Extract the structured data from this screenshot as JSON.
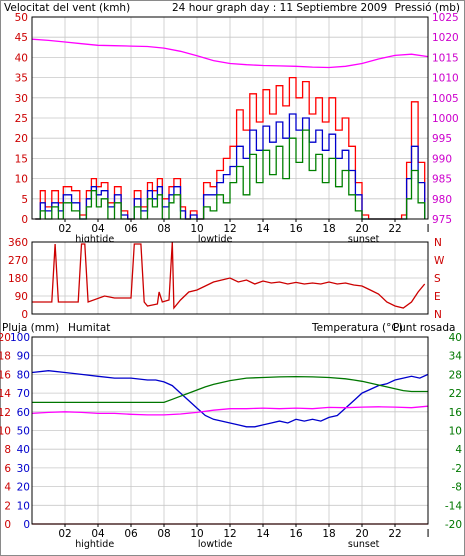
{
  "header": {
    "wind_title": "Velocitat del vent (kmh)",
    "day_title": "24 hour graph day : 11 Septiembre 2009",
    "pressure_title": "Pressió (mb)"
  },
  "colors": {
    "wind_gust": "#ff0000",
    "wind_avg": "#0000cc",
    "wind_min": "#008000",
    "pressure": "#ff00ff",
    "direction": "#cc0000",
    "rain": "#cc0000",
    "humidity": "#0000cc",
    "temperature": "#007700",
    "dewpoint": "#ff00ff",
    "grid": "#c8c8c8",
    "frame": "#000000"
  },
  "x_axis": {
    "range": [
      0,
      24
    ],
    "ticks": [
      2,
      4,
      6,
      8,
      10,
      12,
      14,
      16,
      18,
      20,
      22
    ],
    "tick_labels": [
      "02",
      "04",
      "06",
      "08",
      "10",
      "12",
      "14",
      "16",
      "18",
      "20",
      "22"
    ],
    "end_label": "I",
    "events": [
      {
        "label": "hightide",
        "x": 3.8
      },
      {
        "label": "lowtide",
        "x": 11.1
      },
      {
        "label": "sunset",
        "x": 20.1
      }
    ]
  },
  "chart_data": [
    {
      "type": "line",
      "name": "wind-pressure",
      "title": "24 hour graph day : 11 Septiembre 2009",
      "left_axis_label": "Velocitat del vent (kmh)",
      "right_axis_label": "Pressió (mb)",
      "left_ylim": [
        0,
        50
      ],
      "left_ticks": [
        0,
        5,
        10,
        15,
        20,
        25,
        30,
        35,
        40,
        45,
        50
      ],
      "right_ylim": [
        975,
        1025
      ],
      "right_ticks": [
        975,
        980,
        985,
        990,
        995,
        1000,
        1005,
        1010,
        1015,
        1020,
        1025
      ],
      "grid": true,
      "series": [
        {
          "name": "gust",
          "axis": "left",
          "x": [
            0.2,
            0.5,
            0.8,
            1.2,
            1.6,
            1.9,
            2.4,
            2.9,
            3.3,
            3.6,
            3.9,
            4.2,
            4.6,
            5.0,
            5.4,
            5.8,
            6.2,
            6.6,
            7.0,
            7.3,
            7.6,
            7.9,
            8.3,
            8.6,
            9.0,
            9.3,
            9.6,
            10.0,
            10.4,
            10.8,
            11.2,
            11.6,
            12.0,
            12.4,
            12.8,
            13.2,
            13.6,
            14.0,
            14.4,
            14.8,
            15.2,
            15.6,
            16.0,
            16.4,
            16.8,
            17.2,
            17.6,
            18.0,
            18.4,
            18.8,
            19.2,
            19.6,
            20.0,
            20.4,
            20.8,
            21.2,
            21.6,
            22.0,
            22.4,
            22.7,
            23.0,
            23.4,
            23.8
          ],
          "y": [
            0,
            7,
            3,
            7,
            4,
            8,
            7,
            1,
            7,
            10,
            8,
            9,
            4,
            8,
            2,
            0,
            7,
            3,
            9,
            7,
            10,
            5,
            8,
            10,
            3,
            0,
            2,
            0,
            9,
            8,
            12,
            15,
            18,
            27,
            22,
            31,
            24,
            32,
            26,
            33,
            28,
            35,
            30,
            34,
            26,
            30,
            24,
            30,
            22,
            25,
            18,
            9,
            1,
            0,
            0,
            0,
            0,
            0,
            1,
            14,
            29,
            14,
            0
          ]
        },
        {
          "name": "average",
          "axis": "left",
          "x": [
            0.2,
            0.5,
            0.8,
            1.2,
            1.6,
            1.9,
            2.4,
            2.9,
            3.3,
            3.6,
            3.9,
            4.2,
            4.6,
            5.0,
            5.4,
            5.8,
            6.2,
            6.6,
            7.0,
            7.3,
            7.6,
            7.9,
            8.3,
            8.6,
            9.0,
            9.3,
            9.6,
            10.0,
            10.4,
            10.8,
            11.2,
            11.6,
            12.0,
            12.4,
            12.8,
            13.2,
            13.6,
            14.0,
            14.4,
            14.8,
            15.2,
            15.6,
            16.0,
            16.4,
            16.8,
            17.2,
            17.6,
            18.0,
            18.4,
            18.8,
            19.2,
            19.6,
            20.0,
            20.4,
            20.8,
            21.2,
            21.6,
            22.0,
            22.4,
            22.7,
            23.0,
            23.4,
            23.8
          ],
          "y": [
            0,
            4,
            2,
            4,
            2,
            6,
            4,
            0,
            5,
            8,
            6,
            7,
            3,
            6,
            1,
            0,
            5,
            2,
            7,
            5,
            8,
            3,
            6,
            8,
            2,
            0,
            1,
            0,
            6,
            6,
            9,
            11,
            13,
            18,
            15,
            22,
            17,
            23,
            19,
            24,
            20,
            26,
            22,
            25,
            19,
            22,
            17,
            21,
            15,
            17,
            12,
            6,
            0,
            0,
            0,
            0,
            0,
            0,
            0,
            10,
            18,
            9,
            0
          ]
        },
        {
          "name": "minimum",
          "axis": "left",
          "x": [
            0.2,
            0.5,
            0.8,
            1.2,
            1.6,
            1.9,
            2.4,
            2.9,
            3.3,
            3.6,
            3.9,
            4.2,
            4.6,
            5.0,
            5.4,
            5.8,
            6.2,
            6.6,
            7.0,
            7.3,
            7.6,
            7.9,
            8.3,
            8.6,
            9.0,
            9.3,
            9.6,
            10.0,
            10.4,
            10.8,
            11.2,
            11.6,
            12.0,
            12.4,
            12.8,
            13.2,
            13.6,
            14.0,
            14.4,
            14.8,
            15.2,
            15.6,
            16.0,
            16.4,
            16.8,
            17.2,
            17.6,
            18.0,
            18.4,
            18.8,
            19.2,
            19.6,
            20.0,
            20.4,
            20.8,
            21.2,
            21.6,
            22.0,
            22.4,
            22.7,
            23.0,
            23.4,
            23.8
          ],
          "y": [
            0,
            2,
            0,
            3,
            0,
            4,
            2,
            0,
            3,
            7,
            3,
            5,
            0,
            4,
            0,
            0,
            3,
            0,
            5,
            3,
            6,
            0,
            4,
            6,
            0,
            0,
            0,
            0,
            3,
            2,
            6,
            4,
            9,
            13,
            6,
            16,
            9,
            17,
            11,
            18,
            10,
            20,
            14,
            22,
            12,
            16,
            9,
            15,
            8,
            12,
            6,
            2,
            0,
            0,
            0,
            0,
            0,
            0,
            0,
            5,
            12,
            4,
            0
          ]
        },
        {
          "name": "pressure",
          "axis": "right",
          "x": [
            0,
            1,
            2,
            3,
            4,
            5,
            6,
            7,
            8,
            9,
            10,
            11,
            12,
            13,
            14,
            15,
            16,
            17,
            18,
            19,
            20,
            21,
            22,
            23,
            24
          ],
          "y": [
            1019.5,
            1019.2,
            1018.8,
            1018.4,
            1018.0,
            1017.9,
            1017.8,
            1017.7,
            1017.3,
            1016.5,
            1015.4,
            1014.2,
            1013.5,
            1013.2,
            1013.0,
            1012.9,
            1012.8,
            1012.6,
            1012.5,
            1012.8,
            1013.5,
            1014.6,
            1015.5,
            1015.8,
            1015.2
          ]
        }
      ]
    },
    {
      "type": "line",
      "name": "wind-direction",
      "left_ylim": [
        0,
        360
      ],
      "left_ticks": [
        0,
        90,
        180,
        270,
        360
      ],
      "right_labels": [
        "N",
        "W",
        "S",
        "E",
        "N"
      ],
      "grid": true,
      "series": [
        {
          "name": "direction",
          "x": [
            0,
            1.2,
            1.4,
            1.6,
            2.8,
            3.0,
            3.2,
            3.4,
            4.4,
            5.0,
            6.0,
            6.2,
            6.6,
            6.8,
            7.0,
            7.6,
            7.7,
            7.9,
            8.3,
            8.5,
            8.6,
            9.0,
            9.5,
            10.0,
            10.5,
            11.0,
            11.5,
            12.0,
            12.5,
            13.0,
            13.5,
            14.0,
            14.5,
            15.0,
            15.5,
            16.0,
            16.5,
            17.0,
            17.5,
            18.0,
            18.5,
            19.0,
            19.5,
            20.0,
            20.5,
            21.0,
            21.5,
            22.0,
            22.5,
            23.0,
            23.4,
            23.8
          ],
          "y": [
            60,
            60,
            350,
            60,
            60,
            350,
            350,
            60,
            90,
            80,
            80,
            350,
            350,
            60,
            40,
            50,
            110,
            60,
            70,
            360,
            30,
            70,
            110,
            120,
            140,
            160,
            170,
            180,
            160,
            170,
            150,
            165,
            155,
            160,
            150,
            158,
            150,
            155,
            150,
            160,
            150,
            155,
            145,
            140,
            120,
            100,
            60,
            40,
            30,
            60,
            110,
            150
          ]
        }
      ]
    },
    {
      "type": "line",
      "name": "rain-humidity-temperature",
      "left_labels": [
        "Pluja (mm)",
        "Humitat"
      ],
      "right_labels": [
        "Temperatura (°C)",
        "Punt rosada"
      ],
      "rain_ticks": [
        0,
        2,
        4,
        6,
        8,
        10,
        12,
        14,
        16,
        18,
        20
      ],
      "humidity_ticks": [
        0,
        10,
        20,
        30,
        40,
        50,
        60,
        70,
        80,
        90,
        100
      ],
      "temperature_ylim": [
        -20,
        40
      ],
      "temperature_ticks": [
        -20,
        -14,
        -8,
        -2,
        4,
        10,
        16,
        22,
        28,
        34,
        40
      ],
      "grid": true,
      "series": [
        {
          "name": "rain",
          "axis": "rain",
          "x": [
            0,
            24
          ],
          "y": [
            0,
            0
          ]
        },
        {
          "name": "humidity",
          "axis": "humidity",
          "x": [
            0,
            1,
            2,
            3,
            4,
            5,
            6,
            7,
            7.5,
            8,
            8.5,
            9,
            9.5,
            10,
            10.5,
            11,
            11.5,
            12,
            12.5,
            13,
            13.5,
            14,
            14.5,
            15,
            15.5,
            16,
            16.5,
            17,
            17.5,
            18,
            18.5,
            19,
            19.5,
            20,
            20.5,
            21,
            21.5,
            22,
            22.5,
            23,
            23.5,
            24
          ],
          "y": [
            81,
            82,
            81,
            80,
            79,
            78,
            78,
            77,
            77,
            76,
            74,
            70,
            66,
            62,
            58,
            56,
            55,
            54,
            53,
            52,
            52,
            53,
            54,
            55,
            54,
            56,
            55,
            56,
            55,
            57,
            58,
            62,
            66,
            70,
            72,
            74,
            75,
            77,
            78,
            79,
            78,
            80
          ]
        },
        {
          "name": "temperature",
          "axis": "temperature",
          "x": [
            0,
            1,
            2,
            3,
            4,
            5,
            6,
            7,
            7.5,
            8,
            8.5,
            9,
            9.5,
            10,
            10.5,
            11,
            11.5,
            12,
            12.5,
            13,
            14,
            15,
            16,
            17,
            18,
            19,
            19.5,
            20,
            20.5,
            21,
            21.5,
            22,
            22.5,
            23,
            24
          ],
          "y": [
            19,
            19,
            19,
            19,
            19,
            19,
            19,
            19,
            19,
            19,
            20,
            21,
            22,
            23,
            24,
            24.8,
            25.4,
            26,
            26.4,
            26.8,
            27,
            27.2,
            27.3,
            27.2,
            27,
            26.6,
            26.2,
            25.8,
            25.2,
            24.6,
            24,
            23.4,
            22.8,
            22.5,
            22.5
          ]
        },
        {
          "name": "dewpoint",
          "axis": "temperature",
          "x": [
            0,
            1,
            2,
            3,
            4,
            5,
            6,
            7,
            8,
            9,
            10,
            11,
            12,
            13,
            14,
            15,
            16,
            17,
            18,
            19,
            20,
            21,
            22,
            23,
            24
          ],
          "y": [
            15.5,
            15.8,
            16.0,
            15.8,
            15.5,
            15.5,
            15.2,
            15.0,
            15.0,
            15.3,
            15.8,
            16.5,
            17.0,
            17.0,
            17.2,
            17.0,
            17.2,
            17.0,
            17.4,
            17.3,
            17.5,
            17.6,
            17.5,
            17.3,
            17.8
          ]
        }
      ]
    }
  ],
  "panel3_titles": {
    "rain": "Pluja (mm)",
    "humidity": "Humitat",
    "temperature": "Temperatura (°C)",
    "dewpoint": "Punt rosada"
  }
}
